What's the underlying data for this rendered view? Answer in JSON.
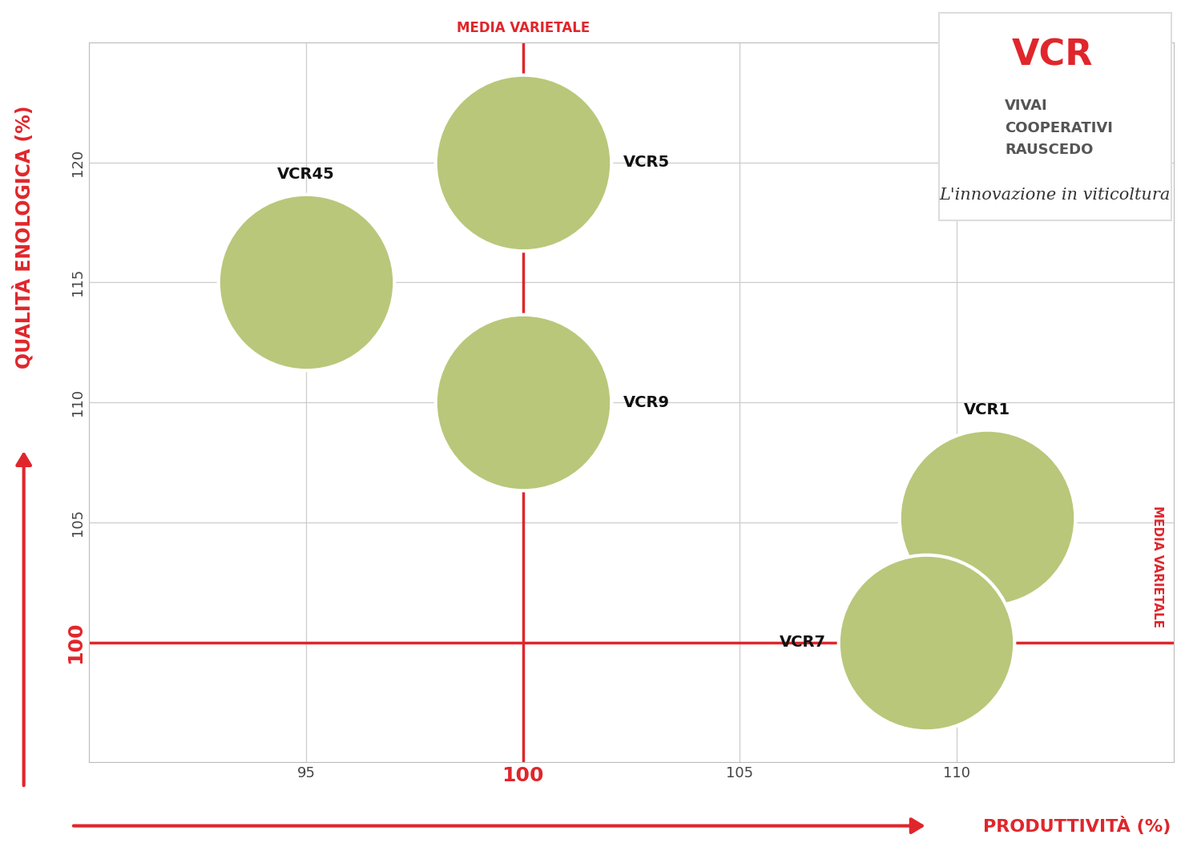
{
  "chart_data": {
    "type": "scatter",
    "xlabel": "PRODUTTIVITÀ (%)",
    "ylabel": "QUALITÀ ENOLOGICA (%)",
    "labels": [
      "VCR45",
      "VCR5",
      "VCR9",
      "VCR1",
      "VCR7"
    ],
    "x": [
      95,
      100,
      100,
      110.7,
      109.3
    ],
    "y": [
      115,
      120,
      110,
      105.2,
      100
    ],
    "color": "#b9c77a",
    "marker": "o",
    "xlim": [
      90,
      115
    ],
    "ylim": [
      95,
      125
    ],
    "xticks": [
      95,
      100,
      105,
      110
    ],
    "yticks": [
      100,
      105,
      110,
      115,
      120
    ],
    "grid": true,
    "reference_lines": [
      {
        "axis": "x",
        "value": 100,
        "label": "MEDIA VARIETALE"
      },
      {
        "axis": "y",
        "value": 100,
        "label": "MEDIA VARIETALE"
      }
    ]
  },
  "logo": {
    "mark": "VCR",
    "name": [
      "VIVAI",
      "COOPERATIVI",
      "RAUSCEDO"
    ],
    "tagline": "L'innovazione in viticoltura"
  }
}
